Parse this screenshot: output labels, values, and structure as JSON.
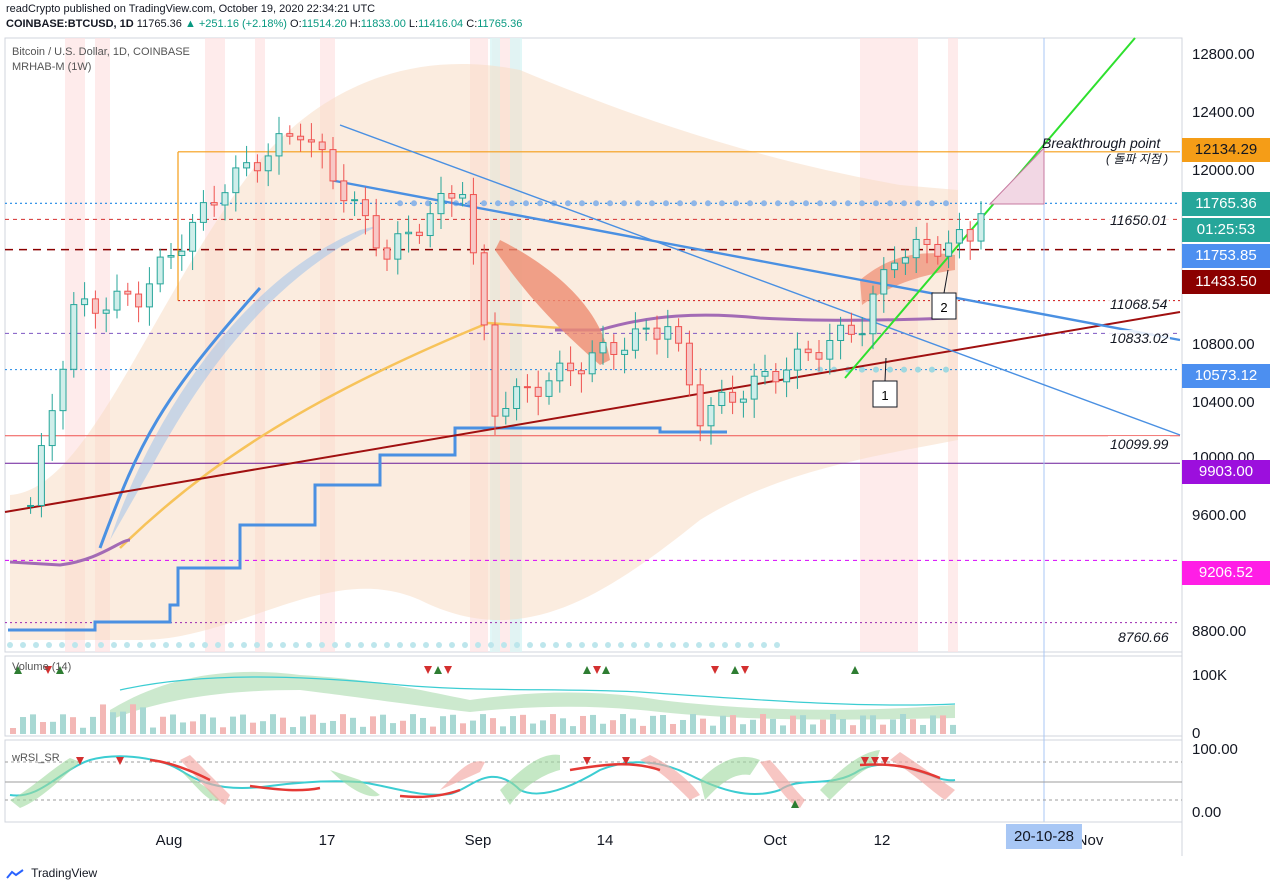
{
  "header": {
    "line1": "readCrypto published on TradingView.com, October 19, 2020 22:34:21 UTC",
    "symbol": "COINBASE:BTCUSD, 1D",
    "last": "11765.36",
    "change": "▲ +251.16 (+2.18%)",
    "o_label": "O:",
    "o": "11514.20",
    "h_label": "H:",
    "h": "11833.00",
    "l_label": "L:",
    "l": "11416.04",
    "c_label": "C:",
    "c": "11765.36"
  },
  "main_pane": {
    "title": "Bitcoin / U.S. Dollar, 1D, COINBASE",
    "indicator": "MRHAB-M (1W)"
  },
  "volume_pane": {
    "label": "Volume (14)",
    "ticks": [
      "100K",
      "0"
    ]
  },
  "rsi_pane": {
    "label": "wRSI_SR",
    "ticks": [
      "100.00",
      "0.00"
    ]
  },
  "price_axis_ticks": [
    "12800.00",
    "12400.00",
    "12000.00",
    "10800.00",
    "10400.00",
    "10000.00",
    "9600.00",
    "8800.00"
  ],
  "price_tags": [
    {
      "text": "12134.29",
      "color": "#f59d17",
      "fg": "#131722"
    },
    {
      "text": "11765.36",
      "color": "#26a69a",
      "fg": "#ffffff"
    },
    {
      "text": "01:25:53",
      "color": "#26a69a",
      "fg": "#ffffff"
    },
    {
      "text": "11753.85",
      "color": "#4c8ff0",
      "fg": "#ffffff"
    },
    {
      "text": "11433.50",
      "color": "#8b0000",
      "fg": "#ffffff"
    },
    {
      "text": "10573.12",
      "color": "#4c8ff0",
      "fg": "#ffffff"
    },
    {
      "text": "9903.00",
      "color": "#9c0fdd",
      "fg": "#ffffff"
    },
    {
      "text": "9206.52",
      "color": "#ff1ee6",
      "fg": "#ffffff"
    }
  ],
  "line_labels": [
    "11650.01",
    "11068.54",
    "10833.02",
    "10099.99",
    "8760.66"
  ],
  "annotations": {
    "breakthrough": "Breakthrough point",
    "breakthrough_ko": "( 돌파 지점 )",
    "callout_1": "1",
    "callout_2": "2"
  },
  "x_axis": [
    "Aug",
    "17",
    "Sep",
    "14",
    "Oct",
    "12",
    "20-10-28",
    "Nov"
  ],
  "footer": "TradingView",
  "colors": {
    "up": "#26a69a",
    "down": "#ef5350",
    "blue_line": "#4a90e2",
    "red_trend": "#a01010",
    "green_trend": "#2ee02e",
    "orange": "#f59d17"
  },
  "chart_data": {
    "type": "candlestick",
    "symbol": "COINBASE:BTCUSD",
    "interval": "1D",
    "ylim": [
      8550,
      12950
    ],
    "horizontal_levels": [
      12134.29,
      11765.36,
      11650.01,
      11433.5,
      11068.54,
      10833.02,
      10573.12,
      10099.99,
      9903.0,
      9206.52,
      8760.66
    ],
    "approx_close_path": [
      {
        "date": "2020-07-23",
        "close": 9600
      },
      {
        "date": "2020-07-27",
        "close": 11000
      },
      {
        "date": "2020-08-02",
        "close": 11100
      },
      {
        "date": "2020-08-10",
        "close": 11900
      },
      {
        "date": "2020-08-17",
        "close": 12300
      },
      {
        "date": "2020-08-25",
        "close": 11400
      },
      {
        "date": "2020-09-01",
        "close": 11900
      },
      {
        "date": "2020-09-04",
        "close": 10300
      },
      {
        "date": "2020-09-14",
        "close": 10700
      },
      {
        "date": "2020-09-20",
        "close": 10900
      },
      {
        "date": "2020-09-23",
        "close": 10250
      },
      {
        "date": "2020-10-01",
        "close": 10600
      },
      {
        "date": "2020-10-08",
        "close": 10900
      },
      {
        "date": "2020-10-11",
        "close": 11400
      },
      {
        "date": "2020-10-18",
        "close": 11514.2
      },
      {
        "date": "2020-10-19",
        "close": 11765.36
      }
    ]
  }
}
